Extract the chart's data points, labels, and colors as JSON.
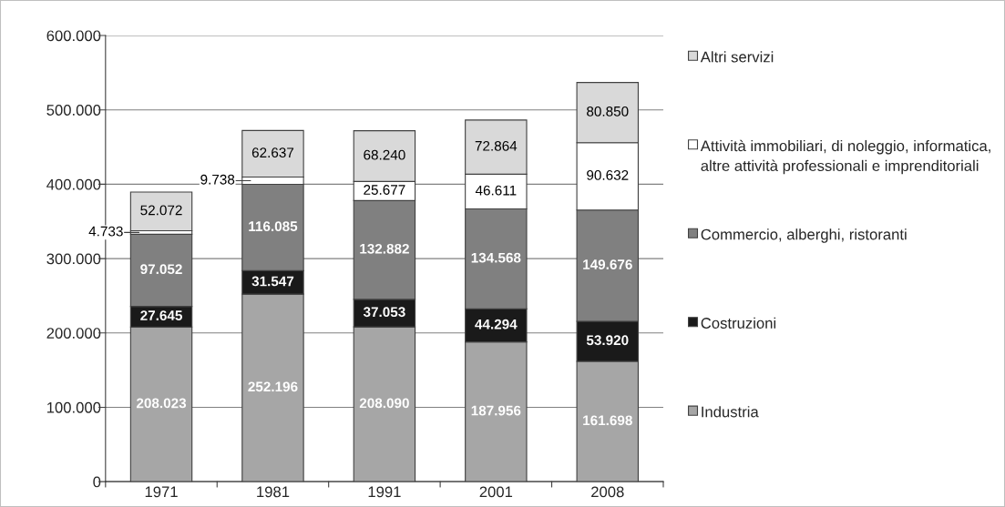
{
  "chart_data": {
    "type": "bar",
    "stacked": true,
    "categories": [
      "1971",
      "1981",
      "1991",
      "2001",
      "2008"
    ],
    "series": [
      {
        "name": "Industria",
        "color": "#a6a6a6",
        "values": [
          208023,
          252196,
          208090,
          187956,
          161698
        ],
        "value_labels": [
          "208.023",
          "252.196",
          "208.090",
          "187.956",
          "161.698"
        ]
      },
      {
        "name": "Costruzioni",
        "color": "#1a1a1a",
        "values": [
          27645,
          31547,
          37053,
          44294,
          53920
        ],
        "value_labels": [
          "27.645",
          "31.547",
          "37.053",
          "44.294",
          "53.920"
        ]
      },
      {
        "name": "Commercio, alberghi, ristoranti",
        "color": "#808080",
        "values": [
          97052,
          116085,
          132882,
          134568,
          149676
        ],
        "value_labels": [
          "97.052",
          "116.085",
          "132.882",
          "134.568",
          "149.676"
        ]
      },
      {
        "name": "Attività immobiliari, di noleggio, informatica, altre attività professionali e imprenditoriali",
        "color": "#ffffff",
        "values": [
          4733,
          9738,
          25677,
          46611,
          90632
        ],
        "value_labels": [
          "4.733",
          "9.738",
          "25.677",
          "46.611",
          "90.632"
        ]
      },
      {
        "name": "Altri servizi",
        "color": "#d9d9d9",
        "values": [
          52072,
          62637,
          68240,
          72864,
          80850
        ],
        "value_labels": [
          "52.072",
          "62.637",
          "68.240",
          "72.864",
          "80.850"
        ]
      }
    ],
    "ylim": [
      0,
      600000
    ],
    "yticks": [
      {
        "value": 0,
        "label": "0"
      },
      {
        "value": 100000,
        "label": "100.000"
      },
      {
        "value": 200000,
        "label": "200.000"
      },
      {
        "value": 300000,
        "label": "300.000"
      },
      {
        "value": 400000,
        "label": "400.000"
      },
      {
        "value": 500000,
        "label": "500.000"
      },
      {
        "value": 600000,
        "label": "600.000"
      }
    ],
    "grid": "y",
    "legend": "right"
  }
}
